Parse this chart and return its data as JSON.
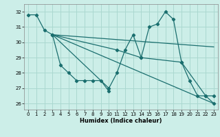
{
  "xlabel": "Humidex (Indice chaleur)",
  "background_color": "#cceee8",
  "grid_color": "#aad8d0",
  "line_color": "#1a6e6e",
  "xlim": [
    -0.5,
    23.5
  ],
  "ylim": [
    25.6,
    32.5
  ],
  "yticks": [
    26,
    27,
    28,
    29,
    30,
    31,
    32
  ],
  "xticks": [
    0,
    1,
    2,
    3,
    4,
    5,
    6,
    7,
    8,
    9,
    10,
    11,
    12,
    13,
    14,
    15,
    16,
    17,
    18,
    19,
    20,
    21,
    22,
    23
  ],
  "line1_x": [
    0,
    1,
    2,
    3,
    4,
    5,
    6,
    7,
    8,
    9,
    10
  ],
  "line1_y": [
    31.8,
    31.8,
    30.8,
    30.5,
    28.5,
    28.0,
    27.5,
    27.5,
    27.5,
    27.5,
    26.8
  ],
  "line2_x": [
    3,
    11,
    14,
    19,
    22,
    23
  ],
  "line2_y": [
    30.5,
    29.5,
    29.0,
    28.7,
    26.5,
    26.5
  ],
  "line3_x": [
    3,
    10,
    11,
    12,
    13,
    14,
    15,
    16,
    17,
    18,
    19,
    20,
    21,
    22,
    23
  ],
  "line3_y": [
    30.5,
    27.0,
    28.0,
    29.5,
    30.5,
    29.0,
    31.0,
    31.2,
    32.0,
    31.5,
    28.7,
    27.5,
    26.5,
    26.5,
    26.0
  ],
  "line4_x": [
    3,
    23
  ],
  "line4_y": [
    30.5,
    29.7
  ],
  "line5_x": [
    3,
    23
  ],
  "line5_y": [
    30.5,
    26.0
  ]
}
